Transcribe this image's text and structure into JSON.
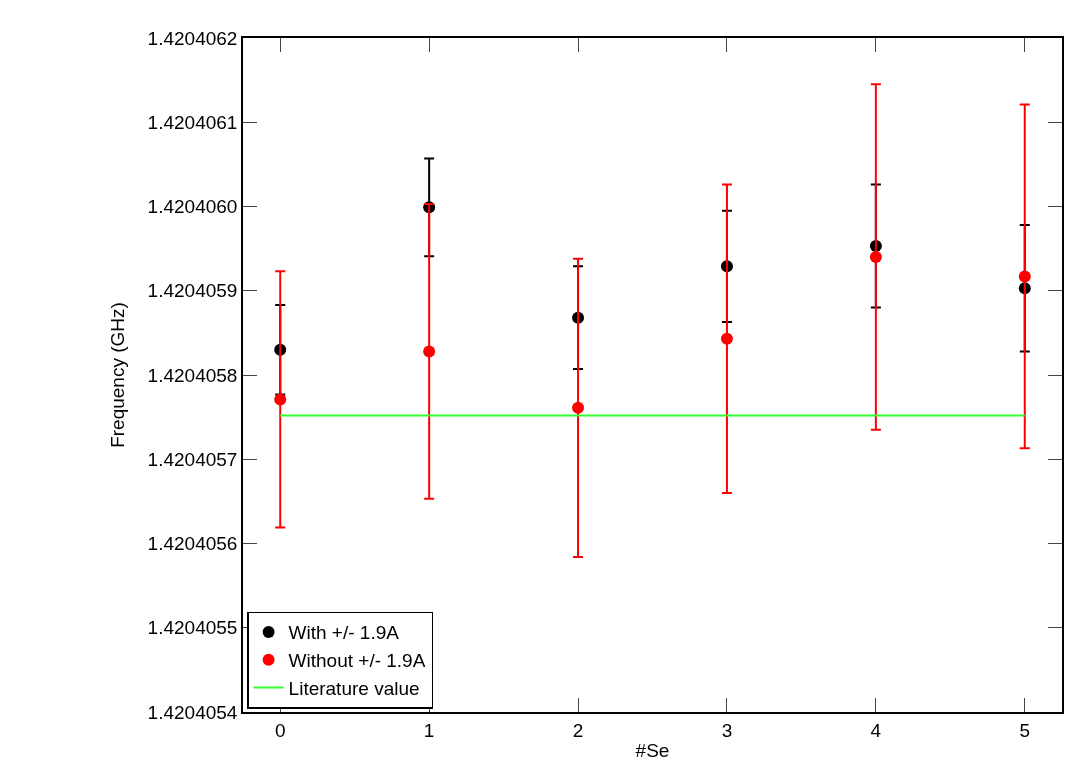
{
  "chart_data": {
    "type": "scatter",
    "xlabel": "#Se",
    "ylabel": "Frequency (GHz)",
    "x": [
      0,
      1,
      2,
      3,
      4,
      5
    ],
    "series": [
      {
        "name": "With +/- 1.9A",
        "color": "#000000",
        "values": [
          1.42040583,
          1.420405999,
          1.420405868,
          1.420405929,
          1.420405953,
          1.420405903
        ],
        "errors": [
          5.3e-08,
          5.8e-08,
          6.1e-08,
          6.6e-08,
          7.3e-08,
          7.5e-08
        ]
      },
      {
        "name": "Without +/- 1.9A",
        "color": "#ff0000",
        "values": [
          1.420405771,
          1.420405828,
          1.420405761,
          1.420405843,
          1.42040594,
          1.420405917
        ],
        "errors": [
          1.52e-07,
          1.75e-07,
          1.77e-07,
          1.83e-07,
          2.05e-07,
          2.04e-07
        ]
      }
    ],
    "ref_lines": [
      {
        "axis": "y",
        "value": 1.420405752,
        "label": "Literature value",
        "color": "#33ff33"
      }
    ],
    "xlim": [
      -0.25,
      5.25
    ],
    "xticks": [
      0,
      1,
      2,
      3,
      4,
      5
    ],
    "ylim": [
      1.4204054,
      1.4204062
    ],
    "yticks": [
      1.4204054,
      1.4204055,
      1.4204056,
      1.4204057,
      1.4204058,
      1.4204059,
      {
        "value": 1.420406,
        "label": "1.4204060"
      },
      1.4204061,
      1.4204062
    ],
    "grid": false,
    "legend": "bottom left",
    "marker": "circle"
  }
}
